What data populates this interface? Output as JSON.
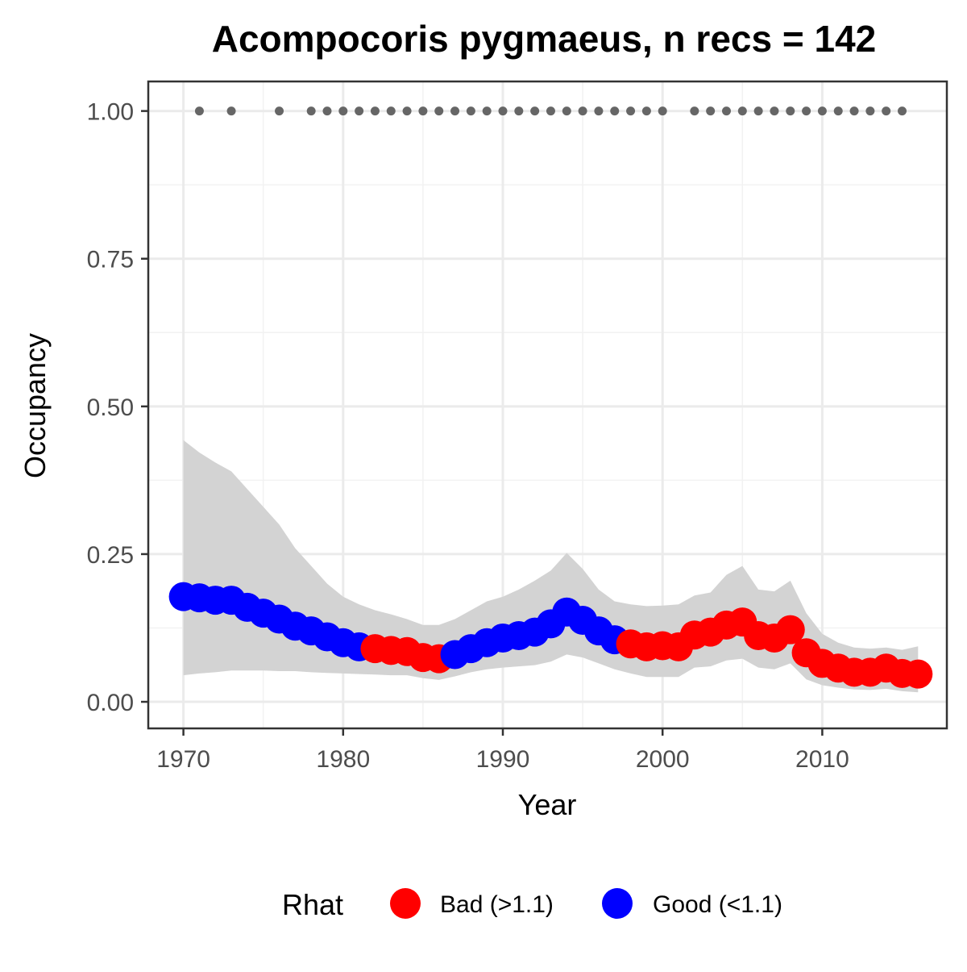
{
  "chart_data": {
    "type": "line",
    "title": "Acompocoris pygmaeus, n recs = 142",
    "xlabel": "Year",
    "ylabel": "Occupancy",
    "xlim": [
      1967.8,
      2017.8
    ],
    "ylim": [
      -0.045,
      1.05
    ],
    "x_ticks": [
      1970,
      1980,
      1990,
      2000,
      2010
    ],
    "y_ticks": [
      0.0,
      0.25,
      0.5,
      0.75,
      1.0
    ],
    "y_tick_labels": [
      "0.00",
      "0.25",
      "0.50",
      "0.75",
      "1.00"
    ],
    "grid": true,
    "legend": {
      "title": "Rhat",
      "position": "bottom",
      "entries": [
        {
          "label": "Bad (>1.1)",
          "color": "#ff0000"
        },
        {
          "label": "Good (<1.1)",
          "color": "#0000ff"
        }
      ]
    },
    "colors": {
      "bad": "#ff0000",
      "good": "#0000ff",
      "ribbon": "#d3d3d3",
      "record_points": "#666666"
    },
    "occupancy": [
      {
        "year": 1970,
        "mean": 0.178,
        "lower": 0.045,
        "upper": 0.443,
        "rhat": "Good"
      },
      {
        "year": 1971,
        "mean": 0.176,
        "lower": 0.048,
        "upper": 0.422,
        "rhat": "Good"
      },
      {
        "year": 1972,
        "mean": 0.172,
        "lower": 0.05,
        "upper": 0.405,
        "rhat": "Good"
      },
      {
        "year": 1973,
        "mean": 0.172,
        "lower": 0.053,
        "upper": 0.39,
        "rhat": "Good"
      },
      {
        "year": 1974,
        "mean": 0.16,
        "lower": 0.053,
        "upper": 0.36,
        "rhat": "Good"
      },
      {
        "year": 1975,
        "mean": 0.15,
        "lower": 0.053,
        "upper": 0.33,
        "rhat": "Good"
      },
      {
        "year": 1976,
        "mean": 0.14,
        "lower": 0.052,
        "upper": 0.3,
        "rhat": "Good"
      },
      {
        "year": 1977,
        "mean": 0.128,
        "lower": 0.052,
        "upper": 0.26,
        "rhat": "Good"
      },
      {
        "year": 1978,
        "mean": 0.12,
        "lower": 0.05,
        "upper": 0.23,
        "rhat": "Good"
      },
      {
        "year": 1979,
        "mean": 0.11,
        "lower": 0.049,
        "upper": 0.2,
        "rhat": "Good"
      },
      {
        "year": 1980,
        "mean": 0.1,
        "lower": 0.048,
        "upper": 0.178,
        "rhat": "Good"
      },
      {
        "year": 1981,
        "mean": 0.093,
        "lower": 0.047,
        "upper": 0.165,
        "rhat": "Good"
      },
      {
        "year": 1982,
        "mean": 0.09,
        "lower": 0.046,
        "upper": 0.155,
        "rhat": "Bad"
      },
      {
        "year": 1983,
        "mean": 0.087,
        "lower": 0.045,
        "upper": 0.148,
        "rhat": "Bad"
      },
      {
        "year": 1984,
        "mean": 0.085,
        "lower": 0.045,
        "upper": 0.14,
        "rhat": "Bad"
      },
      {
        "year": 1985,
        "mean": 0.075,
        "lower": 0.04,
        "upper": 0.13,
        "rhat": "Bad"
      },
      {
        "year": 1986,
        "mean": 0.073,
        "lower": 0.037,
        "upper": 0.13,
        "rhat": "Bad"
      },
      {
        "year": 1987,
        "mean": 0.08,
        "lower": 0.043,
        "upper": 0.14,
        "rhat": "Good"
      },
      {
        "year": 1988,
        "mean": 0.09,
        "lower": 0.05,
        "upper": 0.155,
        "rhat": "Good"
      },
      {
        "year": 1989,
        "mean": 0.1,
        "lower": 0.055,
        "upper": 0.17,
        "rhat": "Good"
      },
      {
        "year": 1990,
        "mean": 0.108,
        "lower": 0.058,
        "upper": 0.178,
        "rhat": "Good"
      },
      {
        "year": 1991,
        "mean": 0.112,
        "lower": 0.06,
        "upper": 0.19,
        "rhat": "Good"
      },
      {
        "year": 1992,
        "mean": 0.118,
        "lower": 0.062,
        "upper": 0.205,
        "rhat": "Good"
      },
      {
        "year": 1993,
        "mean": 0.132,
        "lower": 0.068,
        "upper": 0.222,
        "rhat": "Good"
      },
      {
        "year": 1994,
        "mean": 0.152,
        "lower": 0.08,
        "upper": 0.252,
        "rhat": "Good"
      },
      {
        "year": 1995,
        "mean": 0.138,
        "lower": 0.075,
        "upper": 0.225,
        "rhat": "Good"
      },
      {
        "year": 1996,
        "mean": 0.12,
        "lower": 0.065,
        "upper": 0.19,
        "rhat": "Good"
      },
      {
        "year": 1997,
        "mean": 0.105,
        "lower": 0.055,
        "upper": 0.17,
        "rhat": "Good"
      },
      {
        "year": 1998,
        "mean": 0.098,
        "lower": 0.048,
        "upper": 0.165,
        "rhat": "Bad"
      },
      {
        "year": 1999,
        "mean": 0.093,
        "lower": 0.042,
        "upper": 0.162,
        "rhat": "Bad"
      },
      {
        "year": 2000,
        "mean": 0.095,
        "lower": 0.042,
        "upper": 0.163,
        "rhat": "Bad"
      },
      {
        "year": 2001,
        "mean": 0.093,
        "lower": 0.042,
        "upper": 0.165,
        "rhat": "Bad"
      },
      {
        "year": 2002,
        "mean": 0.113,
        "lower": 0.058,
        "upper": 0.18,
        "rhat": "Bad"
      },
      {
        "year": 2003,
        "mean": 0.118,
        "lower": 0.06,
        "upper": 0.185,
        "rhat": "Bad"
      },
      {
        "year": 2004,
        "mean": 0.13,
        "lower": 0.07,
        "upper": 0.215,
        "rhat": "Bad"
      },
      {
        "year": 2005,
        "mean": 0.135,
        "lower": 0.073,
        "upper": 0.23,
        "rhat": "Bad"
      },
      {
        "year": 2006,
        "mean": 0.112,
        "lower": 0.058,
        "upper": 0.19,
        "rhat": "Bad"
      },
      {
        "year": 2007,
        "mean": 0.108,
        "lower": 0.055,
        "upper": 0.187,
        "rhat": "Bad"
      },
      {
        "year": 2008,
        "mean": 0.122,
        "lower": 0.065,
        "upper": 0.205,
        "rhat": "Bad"
      },
      {
        "year": 2009,
        "mean": 0.083,
        "lower": 0.038,
        "upper": 0.15,
        "rhat": "Bad"
      },
      {
        "year": 2010,
        "mean": 0.065,
        "lower": 0.028,
        "upper": 0.115,
        "rhat": "Bad"
      },
      {
        "year": 2011,
        "mean": 0.057,
        "lower": 0.024,
        "upper": 0.1,
        "rhat": "Bad"
      },
      {
        "year": 2012,
        "mean": 0.05,
        "lower": 0.021,
        "upper": 0.092,
        "rhat": "Bad"
      },
      {
        "year": 2013,
        "mean": 0.05,
        "lower": 0.02,
        "upper": 0.09,
        "rhat": "Bad"
      },
      {
        "year": 2014,
        "mean": 0.057,
        "lower": 0.022,
        "upper": 0.092,
        "rhat": "Bad"
      },
      {
        "year": 2015,
        "mean": 0.048,
        "lower": 0.018,
        "upper": 0.088,
        "rhat": "Bad"
      },
      {
        "year": 2016,
        "mean": 0.047,
        "lower": 0.016,
        "upper": 0.094,
        "rhat": "Bad"
      }
    ],
    "record_years": [
      1971,
      1973,
      1976,
      1978,
      1979,
      1980,
      1981,
      1982,
      1983,
      1984,
      1985,
      1986,
      1987,
      1988,
      1989,
      1990,
      1991,
      1992,
      1993,
      1994,
      1995,
      1996,
      1997,
      1998,
      1999,
      2000,
      2002,
      2003,
      2004,
      2005,
      2006,
      2007,
      2008,
      2009,
      2010,
      2011,
      2012,
      2013,
      2014,
      2015
    ],
    "record_value": 1.0
  }
}
